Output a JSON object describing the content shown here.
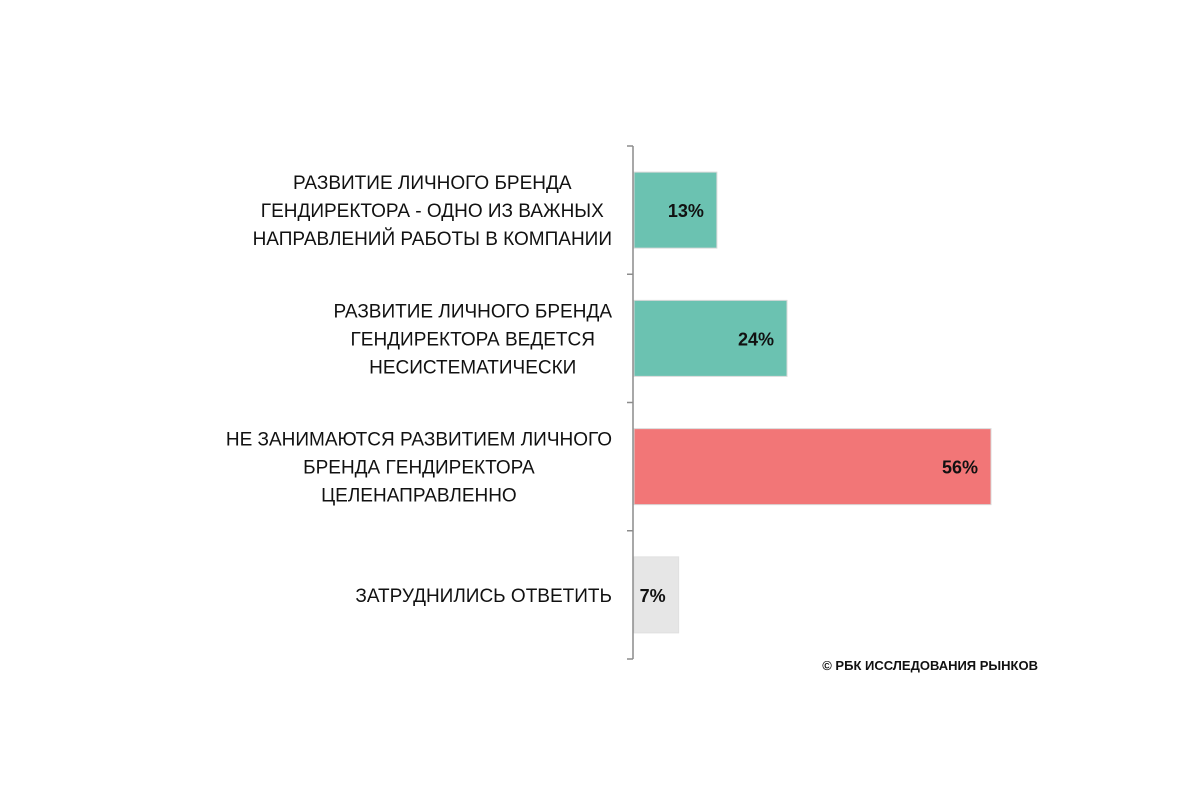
{
  "chart_data": {
    "type": "bar",
    "orientation": "horizontal",
    "categories": [
      [
        "РАЗВИТИЕ ЛИЧНОГО БРЕНДА",
        "ГЕНДИРЕКТОРА - ОДНО ИЗ ВАЖНЫХ",
        "НАПРАВЛЕНИЙ РАБОТЫ В КОМПАНИИ"
      ],
      [
        "РАЗВИТИЕ ЛИЧНОГО БРЕНДА",
        "ГЕНДИРЕКТОРА ВЕДЕТСЯ",
        "НЕСИСТЕМАТИЧЕСКИ"
      ],
      [
        "НЕ ЗАНИМАЮТСЯ РАЗВИТИЕМ ЛИЧНОГО",
        "БРЕНДА ГЕНДИРЕКТОРА",
        "ЦЕЛЕНАПРАВЛЕННО"
      ],
      [
        "ЗАТРУДНИЛИСЬ ОТВЕТИТЬ"
      ]
    ],
    "values": [
      13,
      24,
      56,
      7
    ],
    "value_labels": [
      "13%",
      "24%",
      "56%",
      "7%"
    ],
    "bar_colors": [
      "#6bc2b1",
      "#6bc2b1",
      "#f27677",
      "#e6e6e6"
    ],
    "xlim": [
      0,
      100
    ],
    "grid": false,
    "legend": "none",
    "title": "",
    "xlabel": "",
    "ylabel": ""
  },
  "copyright": "© РБК ИССЛЕДОВАНИЯ РЫНКОВ"
}
